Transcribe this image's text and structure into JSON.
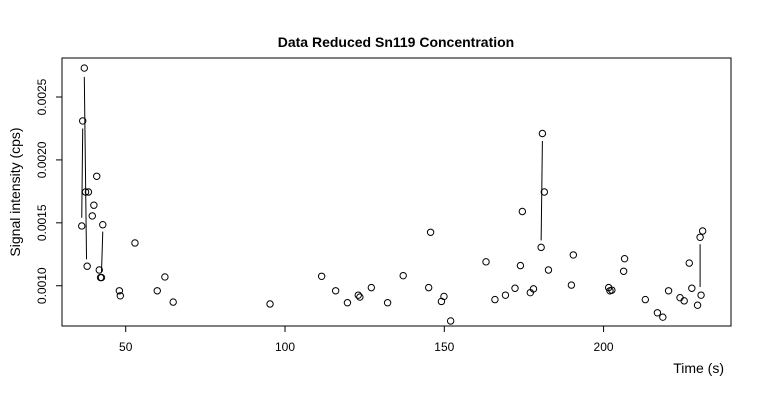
{
  "chart_data": {
    "type": "scatter",
    "title": "Data Reduced Sn119 Concentration",
    "xlabel": "Time (s)",
    "ylabel": "Signal intensity (cps)",
    "xlim": [
      30,
      240
    ],
    "ylim": [
      0.00068,
      0.00281
    ],
    "xticks": [
      50,
      100,
      150,
      200
    ],
    "xtick_labels": [
      "50",
      "100",
      "150",
      "200"
    ],
    "yticks": [
      0.001,
      0.0015,
      0.002,
      0.0025
    ],
    "ytick_labels": [
      "0.0010",
      "0.0015",
      "0.0020",
      "0.0025"
    ],
    "grid": false,
    "legend": "none",
    "series": [
      {
        "marker": "open-circle",
        "points": [
          [
            36.2,
            0.001475
          ],
          [
            36.5,
            0.00231
          ],
          [
            37.0,
            0.00273
          ],
          [
            37.4,
            0.001745
          ],
          [
            37.9,
            0.001155
          ],
          [
            38.3,
            0.001745
          ],
          [
            39.5,
            0.001555
          ],
          [
            40.0,
            0.00164
          ],
          [
            40.9,
            0.00187
          ],
          [
            41.7,
            0.001125
          ],
          [
            42.1,
            0.001065
          ],
          [
            42.4,
            0.001065
          ],
          [
            42.8,
            0.001485
          ],
          [
            48.0,
            0.00096
          ],
          [
            48.3,
            0.00092
          ],
          [
            52.9,
            0.00134
          ],
          [
            59.9,
            0.00096
          ],
          [
            62.3,
            0.00107
          ],
          [
            64.9,
            0.00087
          ],
          [
            95.3,
            0.000855
          ],
          [
            111.5,
            0.001075
          ],
          [
            115.9,
            0.00096
          ],
          [
            119.6,
            0.000865
          ],
          [
            123.0,
            0.000925
          ],
          [
            123.5,
            0.00091
          ],
          [
            127.1,
            0.000985
          ],
          [
            132.2,
            0.000865
          ],
          [
            137.1,
            0.00108
          ],
          [
            145.1,
            0.000985
          ],
          [
            145.7,
            0.001425
          ],
          [
            149.1,
            0.000875
          ],
          [
            149.9,
            0.000915
          ],
          [
            152.0,
            0.00072
          ],
          [
            163.1,
            0.00119
          ],
          [
            165.9,
            0.00089
          ],
          [
            169.2,
            0.000925
          ],
          [
            172.2,
            0.00098
          ],
          [
            173.9,
            0.00116
          ],
          [
            174.5,
            0.00159
          ],
          [
            177.0,
            0.000945
          ],
          [
            178.0,
            0.000975
          ],
          [
            180.4,
            0.001305
          ],
          [
            180.8,
            0.00221
          ],
          [
            181.4,
            0.001745
          ],
          [
            182.7,
            0.001125
          ],
          [
            189.9,
            0.001005
          ],
          [
            190.5,
            0.001245
          ],
          [
            201.6,
            0.000985
          ],
          [
            202.0,
            0.00096
          ],
          [
            202.6,
            0.000965
          ],
          [
            206.3,
            0.001115
          ],
          [
            206.6,
            0.001215
          ],
          [
            213.1,
            0.00089
          ],
          [
            216.9,
            0.000785
          ],
          [
            218.6,
            0.00075
          ],
          [
            220.4,
            0.00096
          ],
          [
            224.0,
            0.000905
          ],
          [
            225.3,
            0.00088
          ],
          [
            226.9,
            0.00118
          ],
          [
            227.7,
            0.00098
          ],
          [
            229.5,
            0.000845
          ],
          [
            230.3,
            0.001385
          ],
          [
            230.6,
            0.000925
          ],
          [
            231.1,
            0.001435
          ]
        ]
      }
    ],
    "connectors": [
      [
        [
          36.2,
          0.00154
        ],
        [
          36.5,
          0.00225
        ]
      ],
      [
        [
          37.0,
          0.00266
        ],
        [
          37.7,
          0.00121
        ]
      ],
      [
        [
          42.8,
          0.00143
        ],
        [
          42.4,
          0.00111
        ]
      ],
      [
        [
          180.8,
          0.00215
        ],
        [
          180.4,
          0.00136
        ]
      ],
      [
        [
          230.3,
          0.00133
        ],
        [
          230.3,
          0.00099
        ]
      ]
    ]
  }
}
